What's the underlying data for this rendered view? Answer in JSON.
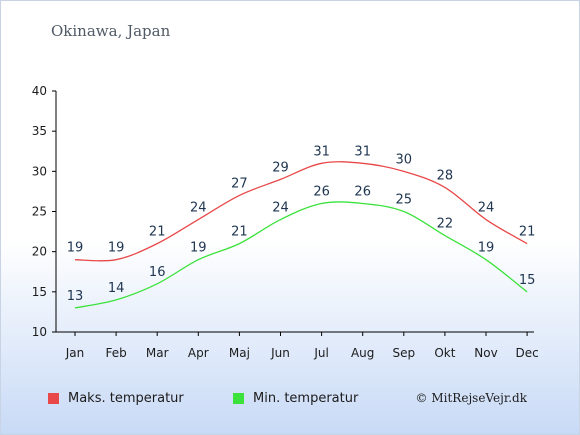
{
  "chart_data": {
    "type": "line",
    "title": "Okinawa, Japan",
    "categories": [
      "Jan",
      "Feb",
      "Mar",
      "Apr",
      "Maj",
      "Jun",
      "Jul",
      "Aug",
      "Sep",
      "Okt",
      "Nov",
      "Dec"
    ],
    "series": [
      {
        "name": "Maks. temperatur",
        "color": "#e84848",
        "values": [
          19,
          19,
          21,
          24,
          27,
          29,
          31,
          31,
          30,
          28,
          24,
          21
        ]
      },
      {
        "name": "Min. temperatur",
        "color": "#3ce23c",
        "values": [
          13,
          14,
          16,
          19,
          21,
          24,
          26,
          26,
          25,
          22,
          19,
          15
        ]
      }
    ],
    "yticks": [
      10,
      15,
      20,
      25,
      30,
      35,
      40
    ],
    "ylim": [
      10,
      40
    ],
    "grid": false,
    "legend_position": "bottom-left"
  },
  "credit": "© MitRejseVejr.dk"
}
